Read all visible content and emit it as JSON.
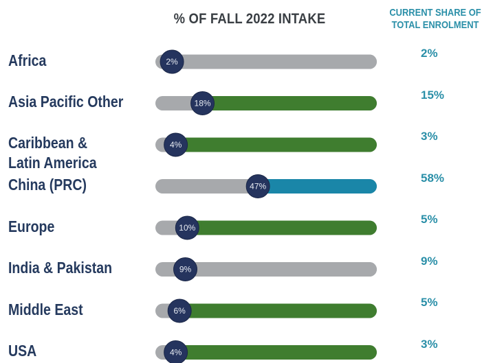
{
  "chart_data": {
    "type": "slider",
    "title": "% OF FALL 2022 INTAKE",
    "share_title": "CURRENT SHARE OF TOTAL ENROLMENT",
    "categories": [
      "Africa",
      "Asia Pacific Other",
      "Caribbean & Latin America",
      "China (PRC)",
      "Europe",
      "India & Pakistan",
      "Middle East",
      "USA"
    ],
    "values": [
      2,
      18,
      4,
      47,
      10,
      9,
      6,
      4
    ],
    "value_labels": [
      "2%",
      "18%",
      "4%",
      "47%",
      "10%",
      "9%",
      "6%",
      "4%"
    ],
    "share_values": [
      2,
      15,
      3,
      58,
      5,
      9,
      5,
      3
    ],
    "share_value_labels": [
      "2%",
      "15%",
      "3%",
      "58%",
      "5%",
      "9%",
      "5%",
      "3%"
    ],
    "colors": [
      "#a7a9ac",
      "#3f7d2f",
      "#3f7d2f",
      "#1a86a8",
      "#3f7d2f",
      "#a7a9ac",
      "#3f7d2f",
      "#3f7d2f"
    ],
    "track_color": "#a7a9ac",
    "knob_color": "#25345e"
  }
}
